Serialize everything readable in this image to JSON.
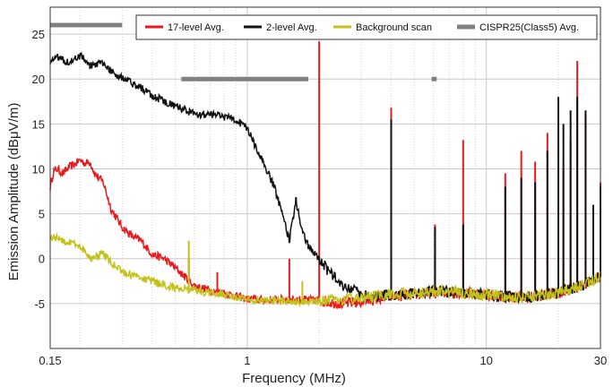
{
  "chart_data": {
    "type": "line",
    "xlabel": "Frequency (MHz)",
    "ylabel": "Emission Amplitude (dBμV/m)",
    "xscale": "log",
    "xlim": [
      0.15,
      30
    ],
    "ylim": [
      -10,
      28
    ],
    "x_ticks": [
      {
        "value": 0.15,
        "label": "0.15"
      },
      {
        "value": 1,
        "label": "1"
      },
      {
        "value": 10,
        "label": "10"
      },
      {
        "value": 30,
        "label": "30"
      }
    ],
    "y_ticks": [
      {
        "value": -5,
        "label": "-5"
      },
      {
        "value": 0,
        "label": "0"
      },
      {
        "value": 5,
        "label": "5"
      },
      {
        "value": 10,
        "label": "10"
      },
      {
        "value": 15,
        "label": "15"
      },
      {
        "value": 20,
        "label": "20"
      },
      {
        "value": 25,
        "label": "25"
      }
    ],
    "grid": true,
    "legend_position": "top-right",
    "series": [
      {
        "name": "17-level Avg.",
        "color": "#e8191c",
        "points": [
          [
            0.15,
            8
          ],
          [
            0.155,
            9.7
          ],
          [
            0.16,
            10
          ],
          [
            0.17,
            9.5
          ],
          [
            0.18,
            10.2
          ],
          [
            0.19,
            10.5
          ],
          [
            0.2,
            11
          ],
          [
            0.21,
            10.6
          ],
          [
            0.22,
            10.8
          ],
          [
            0.23,
            9.5
          ],
          [
            0.25,
            8.5
          ],
          [
            0.27,
            5.5
          ],
          [
            0.3,
            3.5
          ],
          [
            0.33,
            2.5
          ],
          [
            0.36,
            2
          ],
          [
            0.4,
            0.5
          ],
          [
            0.45,
            0
          ],
          [
            0.5,
            -1
          ],
          [
            0.6,
            -3
          ],
          [
            0.7,
            -3.5
          ],
          [
            0.8,
            -3.8
          ],
          [
            1,
            -4.5
          ],
          [
            1.2,
            -4.6
          ],
          [
            1.5,
            -4.5
          ],
          [
            1.9,
            -4.6
          ],
          [
            2.5,
            -5
          ],
          [
            3,
            -4.8
          ],
          [
            4,
            -4.2
          ],
          [
            5,
            -4
          ],
          [
            6,
            -3.8
          ],
          [
            8,
            -3.8
          ],
          [
            10,
            -4
          ],
          [
            12,
            -4.2
          ],
          [
            15,
            -4.3
          ],
          [
            20,
            -3.8
          ],
          [
            25,
            -3
          ],
          [
            30,
            -2
          ]
        ],
        "spikes": [
          [
            0.57,
            0
          ],
          [
            0.75,
            -1.5
          ],
          [
            1.5,
            0
          ],
          [
            2,
            24.2
          ],
          [
            4,
            16.8
          ],
          [
            6.1,
            3.8
          ],
          [
            8,
            13.2
          ],
          [
            12,
            9.5
          ],
          [
            14,
            12
          ],
          [
            16,
            10.8
          ],
          [
            18,
            14
          ],
          [
            21,
            10
          ],
          [
            22.5,
            13
          ],
          [
            24,
            22
          ],
          [
            26,
            16
          ],
          [
            28,
            -1.5
          ],
          [
            30,
            8.5
          ]
        ]
      },
      {
        "name": "2-level Avg.",
        "color": "#111111",
        "points": [
          [
            0.15,
            22
          ],
          [
            0.16,
            22.5
          ],
          [
            0.17,
            22.2
          ],
          [
            0.18,
            21.8
          ],
          [
            0.2,
            22.6
          ],
          [
            0.22,
            21.5
          ],
          [
            0.25,
            21.8
          ],
          [
            0.28,
            20.5
          ],
          [
            0.3,
            20.2
          ],
          [
            0.33,
            19.5
          ],
          [
            0.36,
            19
          ],
          [
            0.4,
            18.2
          ],
          [
            0.45,
            17.5
          ],
          [
            0.5,
            17
          ],
          [
            0.55,
            16.5
          ],
          [
            0.6,
            16.2
          ],
          [
            0.7,
            16
          ],
          [
            0.8,
            15.8
          ],
          [
            0.9,
            15.5
          ],
          [
            1,
            14.5
          ],
          [
            1.1,
            12
          ],
          [
            1.2,
            10
          ],
          [
            1.3,
            8
          ],
          [
            1.4,
            5
          ],
          [
            1.5,
            2
          ],
          [
            1.6,
            6.5
          ],
          [
            1.7,
            3
          ],
          [
            1.8,
            1.5
          ],
          [
            2,
            0
          ],
          [
            2.2,
            -1.5
          ],
          [
            2.5,
            -3
          ],
          [
            3,
            -4
          ],
          [
            3.5,
            -4.2
          ],
          [
            4,
            -4
          ],
          [
            5,
            -3.8
          ],
          [
            6,
            -3.6
          ],
          [
            8,
            -3.8
          ],
          [
            10,
            -4
          ],
          [
            12,
            -4.2
          ],
          [
            15,
            -4.3
          ],
          [
            20,
            -3.8
          ],
          [
            25,
            -3
          ],
          [
            30,
            -2
          ]
        ],
        "spikes": [
          [
            1.6,
            6.8
          ],
          [
            4,
            15.5
          ],
          [
            6.1,
            3.5
          ],
          [
            8,
            3.8
          ],
          [
            12,
            8
          ],
          [
            14,
            9
          ],
          [
            16,
            8.5
          ],
          [
            18,
            12
          ],
          [
            20,
            18
          ],
          [
            21,
            15
          ],
          [
            22.5,
            16.5
          ],
          [
            24,
            18
          ],
          [
            26,
            16.5
          ],
          [
            28,
            6
          ],
          [
            30,
            8
          ]
        ]
      },
      {
        "name": "Background scan",
        "color": "#c4c21a",
        "points": [
          [
            0.15,
            2.5
          ],
          [
            0.17,
            2
          ],
          [
            0.2,
            1.5
          ],
          [
            0.22,
            0
          ],
          [
            0.25,
            0.5
          ],
          [
            0.27,
            -0.5
          ],
          [
            0.3,
            -1.5
          ],
          [
            0.35,
            -2
          ],
          [
            0.4,
            -2.5
          ],
          [
            0.45,
            -3
          ],
          [
            0.5,
            -3.3
          ],
          [
            0.6,
            -3.5
          ],
          [
            0.7,
            -3.8
          ],
          [
            0.8,
            -4
          ],
          [
            1,
            -4.5
          ],
          [
            1.2,
            -4.6
          ],
          [
            1.5,
            -4.8
          ],
          [
            2,
            -4.7
          ],
          [
            2.5,
            -4.6
          ],
          [
            3,
            -4.3
          ],
          [
            4,
            -4
          ],
          [
            5,
            -3.8
          ],
          [
            6,
            -3.6
          ],
          [
            8,
            -3.8
          ],
          [
            10,
            -4
          ],
          [
            12,
            -4.2
          ],
          [
            15,
            -4.3
          ],
          [
            20,
            -3.8
          ],
          [
            25,
            -3
          ],
          [
            30,
            -2
          ]
        ],
        "spikes": [
          [
            0.57,
            2
          ],
          [
            1.7,
            -2.5
          ]
        ]
      },
      {
        "name": "CISPR25(Class5) Avg.",
        "color": "#808080",
        "segments": [
          [
            0.15,
            0.3,
            26
          ],
          [
            0.53,
            1.8,
            20
          ],
          [
            5.9,
            6.2,
            20
          ]
        ]
      }
    ]
  }
}
